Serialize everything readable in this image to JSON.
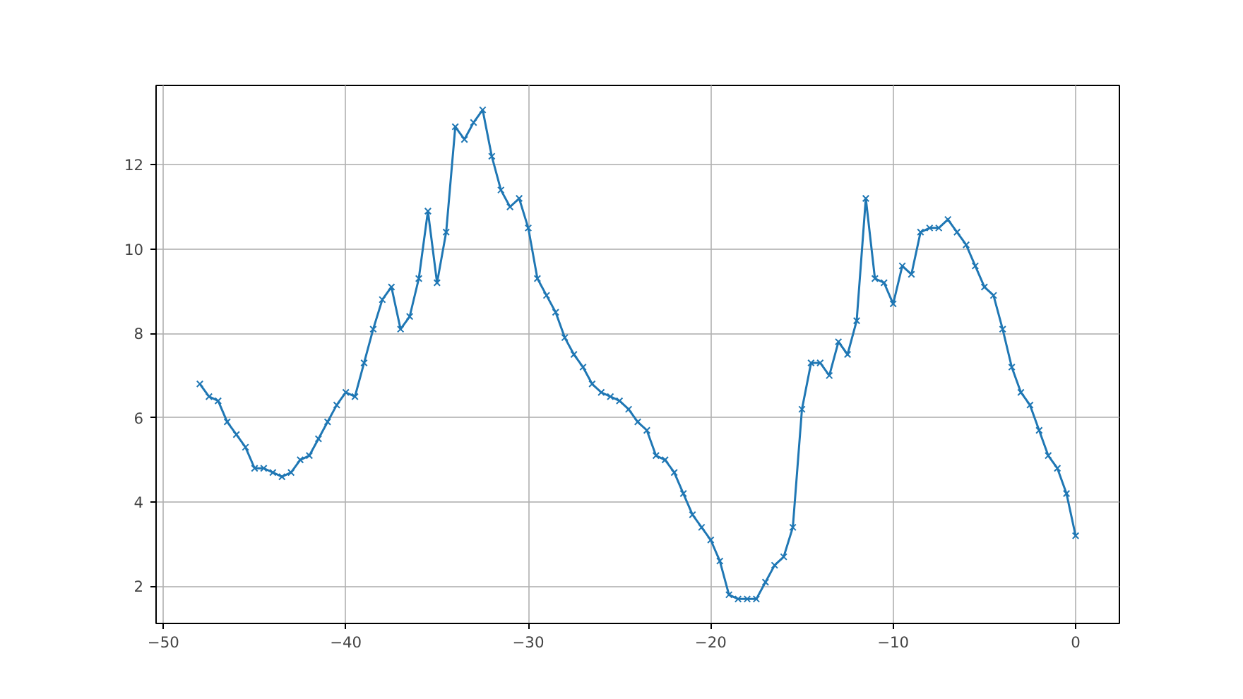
{
  "chart_data": {
    "type": "line",
    "marker": "cross",
    "grid": true,
    "x": [
      -48,
      -47.5,
      -47,
      -46.5,
      -46,
      -45.5,
      -45,
      -44.5,
      -44,
      -43.5,
      -43,
      -42.5,
      -42,
      -41.5,
      -41,
      -40.5,
      -40,
      -39.5,
      -39,
      -38.5,
      -38,
      -37.5,
      -37,
      -36.5,
      -36,
      -35.5,
      -35,
      -34.5,
      -34,
      -33.5,
      -33,
      -32.5,
      -32,
      -31.5,
      -31,
      -30.5,
      -30,
      -29.5,
      -29,
      -28.5,
      -28,
      -27.5,
      -27,
      -26.5,
      -26,
      -25.5,
      -25,
      -24.5,
      -24,
      -23.5,
      -23,
      -22.5,
      -22,
      -21.5,
      -21,
      -20.5,
      -20,
      -19.5,
      -19,
      -18.5,
      -18,
      -17.5,
      -17,
      -16.5,
      -16,
      -15.5,
      -15,
      -14.5,
      -14,
      -13.5,
      -13,
      -12.5,
      -12,
      -11.5,
      -11,
      -10.5,
      -10,
      -9.5,
      -9,
      -8.5,
      -8,
      -7.5,
      -7,
      -6.5,
      -6,
      -5.5,
      -5,
      -4.5,
      -4,
      -3.5,
      -3,
      -2.5,
      -2,
      -1.5,
      -1,
      -0.5,
      0
    ],
    "series": [
      {
        "color": "#1f77b4",
        "values": [
          6.8,
          6.5,
          6.4,
          5.9,
          5.6,
          5.3,
          4.8,
          4.8,
          4.7,
          4.6,
          4.7,
          5.0,
          5.1,
          5.5,
          5.9,
          6.3,
          6.6,
          6.5,
          7.3,
          8.1,
          8.8,
          9.1,
          8.1,
          8.4,
          9.3,
          10.9,
          9.2,
          10.4,
          12.9,
          12.6,
          13.0,
          13.3,
          12.2,
          11.4,
          11.0,
          11.2,
          10.5,
          9.3,
          8.9,
          8.5,
          7.9,
          7.5,
          7.2,
          6.8,
          6.6,
          6.5,
          6.4,
          6.2,
          5.9,
          5.7,
          5.1,
          5.0,
          4.7,
          4.2,
          3.7,
          3.4,
          3.1,
          2.6,
          1.8,
          1.7,
          1.7,
          1.7,
          2.1,
          2.5,
          2.7,
          3.4,
          6.2,
          7.3,
          7.3,
          7.0,
          7.8,
          7.5,
          8.3,
          11.2,
          9.3,
          9.2,
          8.7,
          9.6,
          9.4,
          10.4,
          10.5,
          10.5,
          10.7,
          10.4,
          10.1,
          9.6,
          9.1,
          8.9,
          8.1,
          7.2,
          6.6,
          6.3,
          5.7,
          5.1,
          4.8,
          4.2,
          3.2
        ]
      }
    ],
    "xlim": [
      -50.4,
      2.4
    ],
    "ylim": [
      1.12,
      13.88
    ],
    "xticks": [
      -50,
      -40,
      -30,
      -20,
      -10,
      0
    ],
    "yticks": [
      2,
      4,
      6,
      8,
      10,
      12
    ]
  }
}
